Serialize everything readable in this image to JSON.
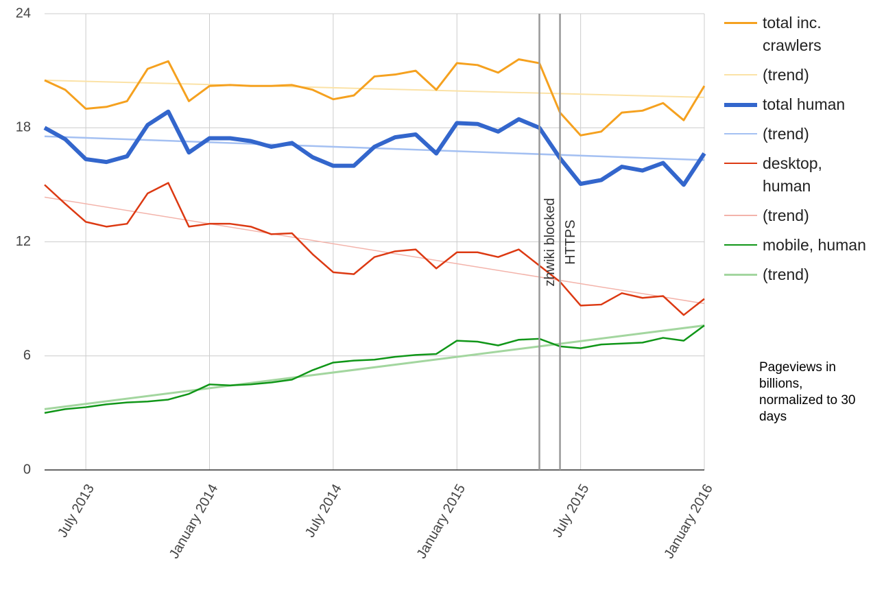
{
  "chart_data": {
    "type": "line",
    "x": [
      "2013-05",
      "2013-06",
      "2013-07",
      "2013-08",
      "2013-09",
      "2013-10",
      "2013-11",
      "2013-12",
      "2014-01",
      "2014-02",
      "2014-03",
      "2014-04",
      "2014-05",
      "2014-06",
      "2014-07",
      "2014-08",
      "2014-09",
      "2014-10",
      "2014-11",
      "2014-12",
      "2015-01",
      "2015-02",
      "2015-03",
      "2015-04",
      "2015-05",
      "2015-06",
      "2015-07",
      "2015-08",
      "2015-09",
      "2015-10",
      "2015-11",
      "2015-12",
      "2016-01"
    ],
    "xlim": [
      "2013-05",
      "2016-01"
    ],
    "xticks": [
      {
        "value": "2013-07",
        "label": "July 2013"
      },
      {
        "value": "2014-01",
        "label": "January 2014"
      },
      {
        "value": "2014-07",
        "label": "July 2014"
      },
      {
        "value": "2015-01",
        "label": "January 2015"
      },
      {
        "value": "2015-07",
        "label": "July 2015"
      },
      {
        "value": "2016-01",
        "label": "January 2016"
      }
    ],
    "ylim": [
      0,
      24
    ],
    "yticks": [
      0,
      6,
      12,
      18,
      24
    ],
    "grid": true,
    "series": [
      {
        "name": "total inc. crawlers",
        "color": "#f5a11f",
        "width": 3,
        "values": [
          20.5,
          20.0,
          19.0,
          19.1,
          19.4,
          21.1,
          21.5,
          19.4,
          20.2,
          20.25,
          20.2,
          20.2,
          20.25,
          20.0,
          19.5,
          19.7,
          20.7,
          20.8,
          21.0,
          20.0,
          21.4,
          21.3,
          20.9,
          21.6,
          21.4,
          18.8,
          17.6,
          17.8,
          18.8,
          18.9,
          19.3,
          18.4,
          20.2
        ]
      },
      {
        "name": "(trend)",
        "color": "#fbe2a6",
        "width": 2,
        "x": [
          "2013-05",
          "2016-01"
        ],
        "values": [
          20.5,
          19.6
        ]
      },
      {
        "name": "total human",
        "color": "#3366cc",
        "width": 6,
        "values": [
          18.0,
          17.4,
          16.35,
          16.2,
          16.5,
          18.15,
          18.85,
          16.7,
          17.45,
          17.45,
          17.3,
          17.0,
          17.2,
          16.45,
          16.0,
          16.0,
          17.0,
          17.5,
          17.65,
          16.65,
          18.25,
          18.2,
          17.8,
          18.45,
          18.0,
          16.4,
          15.05,
          15.25,
          15.95,
          15.75,
          16.15,
          15.0,
          16.65
        ]
      },
      {
        "name": "(trend)",
        "color": "#a4c0f2",
        "width": 2.5,
        "x": [
          "2013-05",
          "2016-01"
        ],
        "values": [
          17.55,
          16.3
        ]
      },
      {
        "name": "desktop, human",
        "color": "#dc3912",
        "width": 2.5,
        "values": [
          15.0,
          14.0,
          13.05,
          12.8,
          12.95,
          14.55,
          15.1,
          12.8,
          12.95,
          12.95,
          12.8,
          12.4,
          12.45,
          11.35,
          10.4,
          10.3,
          11.2,
          11.5,
          11.6,
          10.6,
          11.45,
          11.45,
          11.2,
          11.6,
          10.75,
          9.9,
          8.65,
          8.7,
          9.3,
          9.05,
          9.15,
          8.15,
          9.0
        ]
      },
      {
        "name": "(trend)",
        "color": "#f3b3aa",
        "width": 1.5,
        "x": [
          "2013-05",
          "2016-01"
        ],
        "values": [
          14.35,
          8.75
        ]
      },
      {
        "name": "mobile, human",
        "color": "#109618",
        "width": 2.5,
        "values": [
          3.0,
          3.2,
          3.3,
          3.45,
          3.55,
          3.6,
          3.7,
          4.0,
          4.5,
          4.45,
          4.5,
          4.6,
          4.75,
          5.25,
          5.65,
          5.75,
          5.8,
          5.95,
          6.05,
          6.1,
          6.8,
          6.75,
          6.55,
          6.85,
          6.9,
          6.5,
          6.4,
          6.6,
          6.65,
          6.7,
          6.95,
          6.8,
          7.6
        ]
      },
      {
        "name": "(trend)",
        "color": "#a3d69f",
        "width": 3,
        "x": [
          "2013-05",
          "2016-01"
        ],
        "values": [
          3.2,
          7.6
        ]
      }
    ],
    "annotations": [
      {
        "x": "2015-05",
        "text": "zhwiki blocked"
      },
      {
        "x": "2015-06",
        "text": "HTTPS"
      }
    ],
    "note": "Pageviews in billions, normalized to 30 days"
  }
}
